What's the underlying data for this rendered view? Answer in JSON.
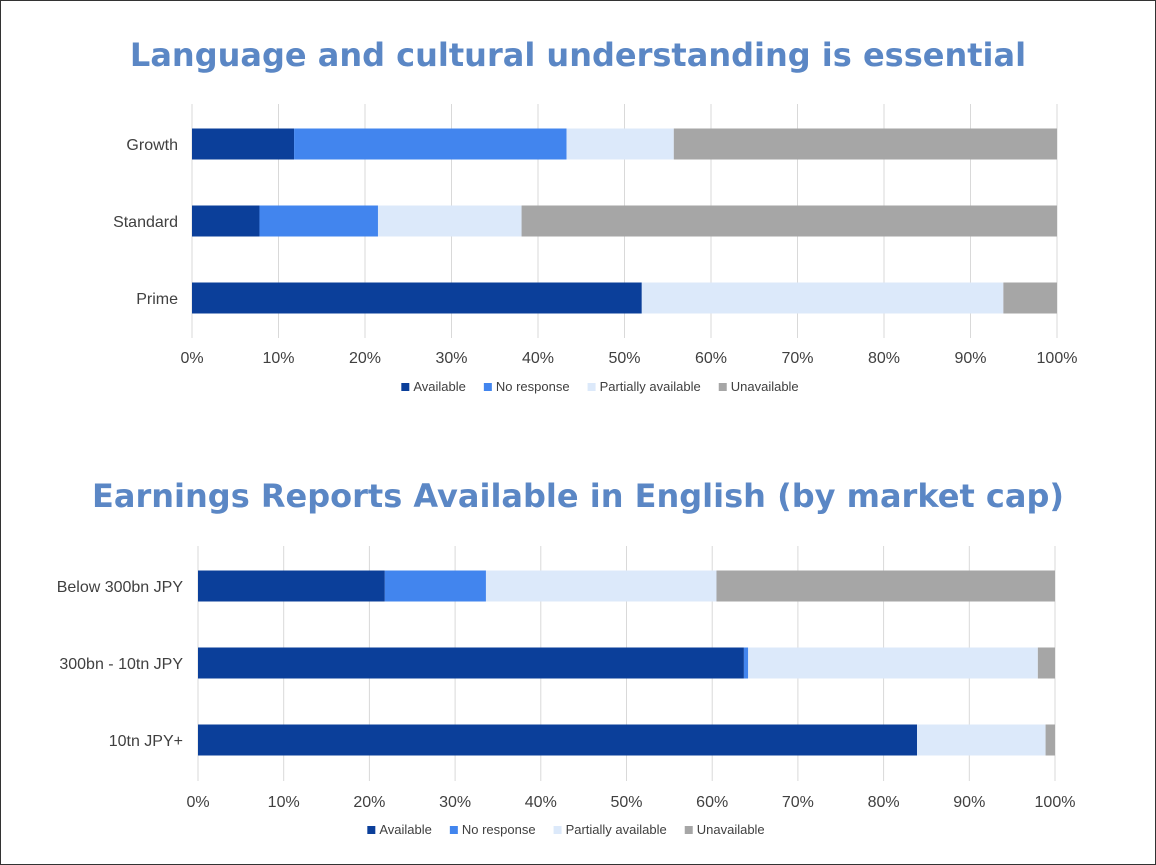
{
  "chart_data": [
    {
      "type": "bar",
      "orientation": "horizontal",
      "stacked": "100%",
      "title": "Language and cultural understanding is essential",
      "categories": [
        "Growth",
        "Standard",
        "Prime"
      ],
      "series": [
        {
          "name": "Available",
          "color": "#0B3F9A",
          "values": [
            11.8,
            7.8,
            52.0
          ]
        },
        {
          "name": "No response",
          "color": "#4285EE",
          "values": [
            31.5,
            13.7,
            0.0
          ]
        },
        {
          "name": "Partially available",
          "color": "#DCE9FA",
          "values": [
            12.4,
            16.6,
            41.8
          ]
        },
        {
          "name": "Unavailable",
          "color": "#A6A6A6",
          "values": [
            44.3,
            61.9,
            6.2
          ]
        }
      ],
      "x_ticks": [
        "0%",
        "10%",
        "20%",
        "30%",
        "40%",
        "50%",
        "60%",
        "70%",
        "80%",
        "90%",
        "100%"
      ],
      "xlim": [
        0,
        100
      ],
      "grid": true,
      "legend": "bottom"
    },
    {
      "type": "bar",
      "orientation": "horizontal",
      "stacked": "100%",
      "title": "Earnings Reports Available in English (by market cap)",
      "categories": [
        "Below 300bn JPY",
        "300bn - 10tn JPY",
        "10tn JPY+"
      ],
      "series": [
        {
          "name": "Available",
          "color": "#0B3F9A",
          "values": [
            21.8,
            63.7,
            83.9
          ]
        },
        {
          "name": "No response",
          "color": "#4285EE",
          "values": [
            11.8,
            0.5,
            0.0
          ]
        },
        {
          "name": "Partially available",
          "color": "#DCE9FA",
          "values": [
            26.9,
            33.8,
            15.0
          ]
        },
        {
          "name": "Unavailable",
          "color": "#A6A6A6",
          "values": [
            39.5,
            2.0,
            1.1
          ]
        }
      ],
      "x_ticks": [
        "0%",
        "10%",
        "20%",
        "30%",
        "40%",
        "50%",
        "60%",
        "70%",
        "80%",
        "90%",
        "100%"
      ],
      "xlim": [
        0,
        100
      ],
      "grid": true,
      "legend": "bottom"
    }
  ]
}
